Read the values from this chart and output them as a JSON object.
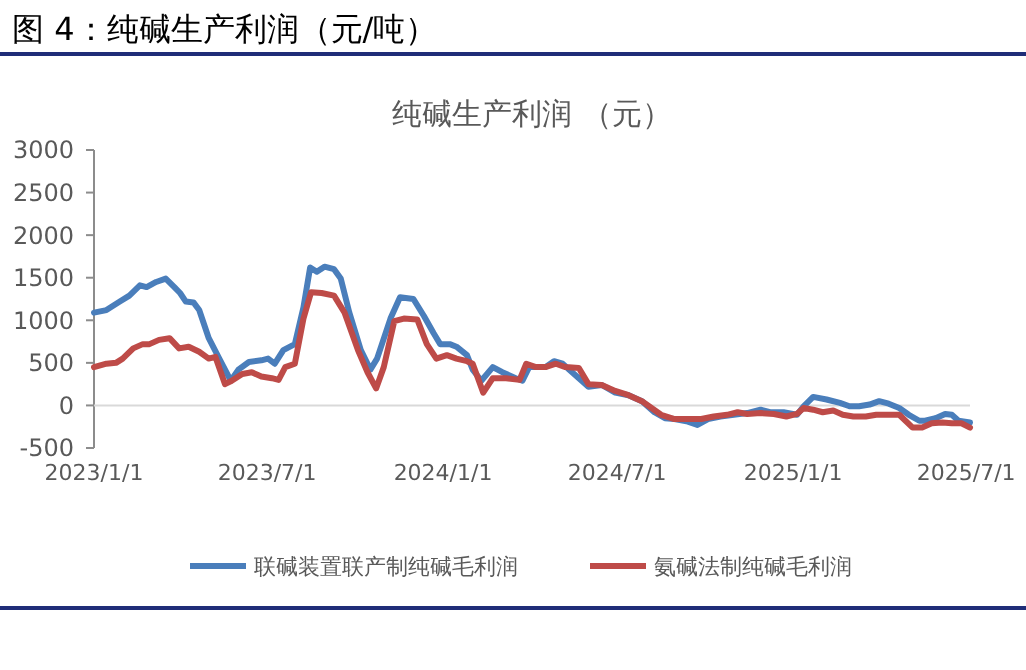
{
  "chart_data": {
    "type": "line",
    "title": "图 4：纯碱生产利润（元/吨）",
    "subtitle": "纯碱生产利润 （元）",
    "xlim": [
      "2023-01-01",
      "2025-07-05"
    ],
    "xticks": [
      {
        "value": "2023-01-01",
        "label": "2023/1/1"
      },
      {
        "value": "2023-07-01",
        "label": "2023/7/1"
      },
      {
        "value": "2024-01-01",
        "label": "2024/1/1"
      },
      {
        "value": "2024-07-01",
        "label": "2024/7/1"
      },
      {
        "value": "2025-01-01",
        "label": "2025/1/1"
      },
      {
        "value": "2025-07-01",
        "label": "2025/7/1"
      }
    ],
    "ylim": [
      -500,
      3000
    ],
    "yticks": [
      -500,
      0,
      500,
      1000,
      1500,
      2000,
      2500,
      3000
    ],
    "grid": false,
    "legend": "bottom",
    "marker": "none",
    "line_style": "solid",
    "series": [
      {
        "name": "联碱装置联产制纯碱毛利润",
        "color": "#4a7ebb",
        "x": [
          "2023-01-01",
          "2023-01-14",
          "2023-01-28",
          "2023-02-07",
          "2023-02-18",
          "2023-02-25",
          "2023-03-07",
          "2023-03-17",
          "2023-03-26",
          "2023-04-01",
          "2023-04-07",
          "2023-04-15",
          "2023-04-21",
          "2023-05-01",
          "2023-05-12",
          "2023-05-18",
          "2023-05-24",
          "2023-06-01",
          "2023-06-12",
          "2023-06-25",
          "2023-07-02",
          "2023-07-09",
          "2023-07-18",
          "2023-07-30",
          "2023-08-08",
          "2023-08-15",
          "2023-08-22",
          "2023-08-30",
          "2023-09-09",
          "2023-09-16",
          "2023-09-25",
          "2023-10-07",
          "2023-10-17",
          "2023-10-24",
          "2023-11-07",
          "2023-11-17",
          "2023-12-01",
          "2023-12-12",
          "2023-12-22",
          "2023-12-29",
          "2024-01-08",
          "2024-01-15",
          "2024-01-26",
          "2024-02-01",
          "2024-02-10",
          "2024-02-22",
          "2024-03-03",
          "2024-03-17",
          "2024-03-24",
          "2024-03-31",
          "2024-04-10",
          "2024-04-17",
          "2024-04-26",
          "2024-05-05",
          "2024-05-12",
          "2024-05-22",
          "2024-06-01",
          "2024-06-15",
          "2024-06-29",
          "2024-07-13",
          "2024-07-27",
          "2024-08-09",
          "2024-08-20",
          "2024-08-30",
          "2024-09-13",
          "2024-09-23",
          "2024-10-04",
          "2024-10-17",
          "2024-10-31",
          "2024-11-14",
          "2024-11-28",
          "2024-12-08",
          "2024-12-22",
          "2025-01-05",
          "2025-01-12",
          "2025-01-22",
          "2025-02-05",
          "2025-02-19",
          "2025-03-01",
          "2025-03-11",
          "2025-03-22",
          "2025-04-01",
          "2025-04-11",
          "2025-04-22",
          "2025-05-02",
          "2025-05-13",
          "2025-05-19",
          "2025-05-30",
          "2025-06-09",
          "2025-06-16",
          "2025-06-23",
          "2025-07-05"
        ],
        "values": [
          1090,
          1120,
          1220,
          1290,
          1410,
          1390,
          1450,
          1490,
          1390,
          1320,
          1220,
          1210,
          1120,
          790,
          550,
          420,
          290,
          420,
          510,
          530,
          550,
          490,
          650,
          720,
          1150,
          1620,
          1570,
          1630,
          1600,
          1490,
          1090,
          650,
          420,
          550,
          1020,
          1270,
          1250,
          1050,
          850,
          720,
          720,
          690,
          590,
          420,
          290,
          450,
          390,
          320,
          290,
          450,
          450,
          450,
          520,
          490,
          420,
          320,
          220,
          240,
          150,
          120,
          50,
          -80,
          -150,
          -160,
          -190,
          -230,
          -160,
          -130,
          -110,
          -90,
          -50,
          -80,
          -80,
          -110,
          -10,
          100,
          70,
          30,
          -10,
          -10,
          10,
          50,
          20,
          -30,
          -110,
          -180,
          -180,
          -150,
          -100,
          -110,
          -180,
          -200
        ]
      },
      {
        "name": "氨碱法制纯碱毛利润",
        "color": "#be4b48",
        "x": [
          "2023-01-01",
          "2023-01-14",
          "2023-01-24",
          "2023-01-31",
          "2023-02-11",
          "2023-02-21",
          "2023-02-28",
          "2023-03-10",
          "2023-03-21",
          "2023-03-31",
          "2023-04-10",
          "2023-04-21",
          "2023-05-01",
          "2023-05-08",
          "2023-05-18",
          "2023-05-25",
          "2023-06-05",
          "2023-06-15",
          "2023-06-25",
          "2023-07-06",
          "2023-07-13",
          "2023-07-20",
          "2023-07-30",
          "2023-08-08",
          "2023-08-16",
          "2023-08-27",
          "2023-09-09",
          "2023-09-20",
          "2023-10-04",
          "2023-10-14",
          "2023-10-23",
          "2023-10-31",
          "2023-11-11",
          "2023-11-21",
          "2023-12-05",
          "2023-12-15",
          "2023-12-25",
          "2024-01-05",
          "2024-01-15",
          "2024-01-26",
          "2024-02-01",
          "2024-02-12",
          "2024-02-22",
          "2024-03-07",
          "2024-03-21",
          "2024-03-28",
          "2024-04-07",
          "2024-04-17",
          "2024-04-28",
          "2024-05-08",
          "2024-05-22",
          "2024-06-01",
          "2024-06-15",
          "2024-06-29",
          "2024-07-13",
          "2024-07-27",
          "2024-08-06",
          "2024-08-16",
          "2024-08-30",
          "2024-09-13",
          "2024-09-27",
          "2024-10-10",
          "2024-10-24",
          "2024-11-04",
          "2024-11-14",
          "2024-11-28",
          "2024-12-12",
          "2024-12-25",
          "2025-01-05",
          "2025-01-12",
          "2025-01-22",
          "2025-02-01",
          "2025-02-12",
          "2025-02-22",
          "2025-03-05",
          "2025-03-18",
          "2025-03-29",
          "2025-04-08",
          "2025-04-22",
          "2025-05-06",
          "2025-05-16",
          "2025-05-26",
          "2025-06-06",
          "2025-06-16",
          "2025-06-26",
          "2025-07-05"
        ],
        "values": [
          450,
          490,
          500,
          550,
          670,
          720,
          720,
          770,
          790,
          670,
          690,
          630,
          550,
          570,
          250,
          290,
          370,
          390,
          340,
          320,
          300,
          450,
          490,
          1020,
          1330,
          1320,
          1290,
          1090,
          650,
          390,
          200,
          450,
          990,
          1020,
          1010,
          720,
          550,
          590,
          550,
          520,
          490,
          150,
          320,
          320,
          300,
          490,
          450,
          450,
          490,
          450,
          440,
          250,
          240,
          170,
          120,
          50,
          -30,
          -110,
          -160,
          -160,
          -160,
          -130,
          -110,
          -80,
          -100,
          -90,
          -100,
          -130,
          -100,
          -30,
          -50,
          -80,
          -60,
          -110,
          -130,
          -130,
          -110,
          -110,
          -110,
          -260,
          -260,
          -210,
          -200,
          -210,
          -210,
          -260
        ]
      }
    ]
  }
}
